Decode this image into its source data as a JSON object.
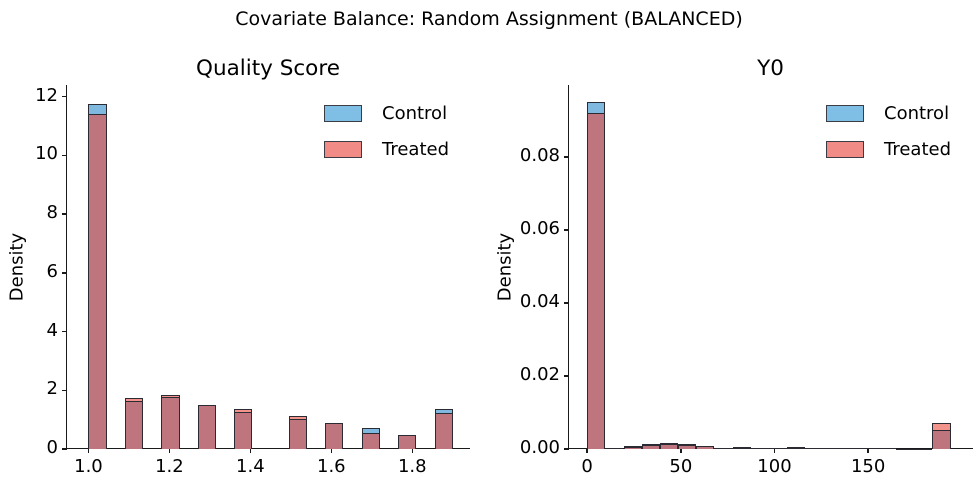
{
  "figure": {
    "suptitle": "Covariate Balance: Random Assignment (BALANCED)",
    "background": "#ffffff"
  },
  "colors": {
    "control_fill": "#7FB9E0",
    "treated_fill": "#F2938C",
    "overlap_fill": "#BF757E",
    "legend_control": "#7FBEE5",
    "legend_treated": "#F08C85",
    "edge": "#2b2b33",
    "axis": "#1a1a1a",
    "text": "#000000"
  },
  "legend": {
    "control_label": "Control",
    "treated_label": "Treated",
    "position": "upper right",
    "frame": false
  },
  "chart_data": [
    {
      "type": "bar",
      "subtype": "overlaid-histogram",
      "title": "Quality Score",
      "xlabel": "",
      "ylabel": "Density",
      "xlim": [
        0.947,
        1.945
      ],
      "ylim": [
        0,
        12.4
      ],
      "xticks": [
        1.0,
        1.2,
        1.4,
        1.6,
        1.8
      ],
      "xtick_labels": [
        "1.0",
        "1.2",
        "1.4",
        "1.6",
        "1.8"
      ],
      "yticks": [
        0,
        2,
        4,
        6,
        8,
        10,
        12
      ],
      "ytick_labels": [
        "0",
        "2",
        "4",
        "6",
        "8",
        "10",
        "12"
      ],
      "grid": false,
      "bin_width": 0.045,
      "bin_left": [
        1.0,
        1.09,
        1.18,
        1.27,
        1.36,
        1.495,
        1.585,
        1.675,
        1.765,
        1.855
      ],
      "series": [
        {
          "name": "Control",
          "values": [
            11.75,
            1.64,
            1.76,
            1.5,
            1.25,
            1.02,
            0.87,
            0.72,
            0.48,
            1.36
          ]
        },
        {
          "name": "Treated",
          "values": [
            11.4,
            1.73,
            1.84,
            1.5,
            1.36,
            1.12,
            0.87,
            0.55,
            0.48,
            1.22
          ]
        }
      ]
    },
    {
      "type": "bar",
      "subtype": "overlaid-histogram",
      "title": "Y0",
      "xlabel": "",
      "ylabel": "Density",
      "xlim": [
        -9.7,
        206.5
      ],
      "ylim": [
        0,
        0.0997
      ],
      "xticks": [
        0,
        50,
        100,
        150
      ],
      "xtick_labels": [
        "0",
        "50",
        "100",
        "150"
      ],
      "yticks": [
        0.0,
        0.02,
        0.04,
        0.06,
        0.08
      ],
      "ytick_labels": [
        "0.00",
        "0.02",
        "0.04",
        "0.06",
        "0.08"
      ],
      "grid": false,
      "bin_width": 9.7,
      "bin_left": [
        0,
        9.7,
        19.4,
        29.1,
        38.8,
        48.5,
        58.2,
        67.9,
        77.6,
        87.3,
        97.0,
        106.7,
        116.4,
        126.1,
        135.8,
        145.5,
        155.2,
        164.9,
        174.6,
        184.3
      ],
      "series": [
        {
          "name": "Control",
          "values": [
            0.095,
            0.0002,
            0.0006,
            0.0011,
            0.0013,
            0.0011,
            0.0008,
            0.0003,
            0.0004,
            0.0003,
            0.0004,
            0.0004,
            0.0003,
            0.0002,
            0.0002,
            0.0002,
            0.0002,
            0.0001,
            0.0001,
            0.0052
          ]
        },
        {
          "name": "Treated",
          "values": [
            0.092,
            0.0002,
            0.0008,
            0.0014,
            0.0017,
            0.0014,
            0.0008,
            0.0003,
            0.0006,
            0.0004,
            0.0005,
            0.0006,
            0.0004,
            0.0002,
            0.0002,
            0.0003,
            0.0002,
            0.0001,
            0.0001,
            0.0072
          ]
        }
      ]
    }
  ]
}
